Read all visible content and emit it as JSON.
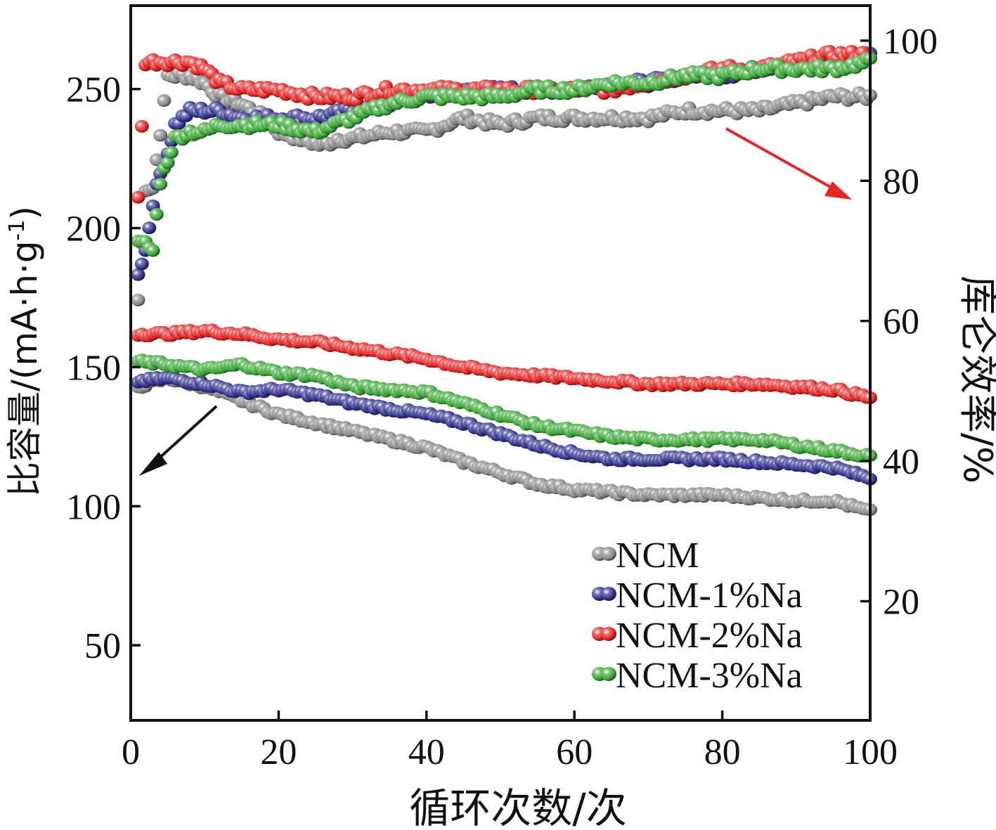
{
  "chart_data": {
    "type": "scatter",
    "xlabel": "循环次数/次",
    "ylabel_left": "比容量/(mA·h·g",
    "ylabel_left_sup": "-1",
    "ylabel_left_close": ")",
    "ylabel_right": "库仑效率/%",
    "xlim": [
      0,
      100
    ],
    "ylim_left": [
      23,
      280
    ],
    "ylim_right": [
      3,
      105
    ],
    "x_ticks": [
      0,
      20,
      40,
      60,
      80,
      100
    ],
    "y_left_ticks": [
      50,
      100,
      150,
      200,
      250
    ],
    "y_right_ticks": [
      20,
      40,
      60,
      80,
      100
    ],
    "legend_position": "bottom-right",
    "series_colors": {
      "NCM": "#8a8a8a",
      "NCM-1%Na": "#33338f",
      "NCM-2%Na": "#e32626",
      "NCM-3%Na": "#3ea83a"
    },
    "legend": [
      "NCM",
      "NCM-1%Na",
      "NCM-2%Na",
      "NCM-3%Na"
    ],
    "capacity_series": [
      {
        "name": "NCM",
        "axis": "left",
        "x": [
          1,
          5,
          10,
          15,
          20,
          25,
          30,
          35,
          40,
          45,
          50,
          55,
          60,
          65,
          70,
          75,
          80,
          85,
          90,
          95,
          100
        ],
        "y": [
          143,
          146,
          143,
          138,
          133,
          130,
          127,
          124,
          121,
          116,
          112,
          108,
          106,
          105,
          104,
          104,
          104,
          103,
          102,
          102,
          98
        ]
      },
      {
        "name": "NCM-1%Na",
        "axis": "left",
        "x": [
          1,
          5,
          10,
          15,
          20,
          25,
          30,
          35,
          40,
          45,
          50,
          55,
          60,
          65,
          70,
          75,
          80,
          85,
          90,
          95,
          100
        ],
        "y": [
          145,
          146,
          144,
          141,
          142,
          140,
          137,
          135,
          133,
          130,
          126,
          122,
          119,
          117,
          117,
          117,
          117,
          116,
          115,
          114,
          110
        ]
      },
      {
        "name": "NCM-2%Na",
        "axis": "left",
        "x": [
          1,
          5,
          10,
          15,
          20,
          25,
          30,
          35,
          40,
          45,
          50,
          55,
          60,
          65,
          70,
          75,
          80,
          85,
          90,
          95,
          100
        ],
        "y": [
          162,
          162,
          163,
          162,
          160,
          159,
          157,
          155,
          153,
          150,
          148,
          147,
          146,
          145,
          144,
          144,
          144,
          144,
          143,
          142,
          139
        ]
      },
      {
        "name": "NCM-3%Na",
        "axis": "left",
        "x": [
          1,
          5,
          10,
          15,
          20,
          25,
          30,
          35,
          40,
          45,
          50,
          55,
          60,
          65,
          70,
          75,
          80,
          85,
          90,
          95,
          100
        ],
        "y": [
          152,
          151,
          149,
          151,
          148,
          147,
          143,
          142,
          141,
          137,
          133,
          129,
          127,
          125,
          124,
          124,
          124,
          124,
          122,
          120,
          118
        ]
      }
    ],
    "efficiency_series": [
      {
        "name": "NCM",
        "axis": "right",
        "x": [
          1,
          2,
          3,
          5,
          8,
          10,
          12,
          15,
          18,
          20,
          23,
          26,
          28,
          30,
          35,
          40,
          45,
          50,
          55,
          60,
          65,
          70,
          75,
          80,
          85,
          90,
          95,
          100
        ],
        "y": [
          63,
          79,
          79,
          95,
          95,
          94,
          92,
          91,
          89,
          87,
          86,
          85,
          86,
          86,
          87,
          87,
          89,
          88,
          89,
          89,
          89,
          89,
          90,
          90,
          90,
          91,
          92,
          92
        ]
      },
      {
        "name": "NCM-1%Na",
        "axis": "right",
        "x": [
          1,
          2,
          3,
          4,
          5,
          6,
          8,
          10,
          12,
          15,
          20,
          25,
          30,
          35,
          40,
          45,
          50,
          55,
          60,
          65,
          70,
          75,
          80,
          85,
          90,
          95,
          100
        ],
        "y": [
          67,
          70,
          77,
          81,
          84,
          88,
          90,
          90,
          90,
          89,
          89,
          89,
          90,
          91,
          92,
          93,
          93,
          93,
          93,
          94,
          94,
          95,
          95,
          96,
          97,
          97,
          98
        ]
      },
      {
        "name": "NCM-2%Na",
        "axis": "right",
        "x": [
          1,
          2,
          5,
          8,
          10,
          12,
          15,
          20,
          25,
          30,
          35,
          40,
          45,
          50,
          55,
          60,
          65,
          70,
          75,
          80,
          85,
          90,
          95,
          100
        ],
        "y": [
          78,
          97,
          97,
          97,
          96,
          94,
          93,
          93,
          92,
          92,
          93,
          93,
          93,
          93,
          93,
          93,
          93,
          94,
          95,
          96,
          96,
          97,
          98,
          98
        ]
      },
      {
        "name": "NCM-3%Na",
        "axis": "right",
        "x": [
          1,
          2,
          3,
          4,
          5,
          6,
          8,
          10,
          12,
          15,
          20,
          25,
          30,
          35,
          40,
          45,
          50,
          55,
          60,
          65,
          70,
          75,
          80,
          85,
          90,
          95,
          100
        ],
        "y": [
          71,
          71,
          70,
          80,
          83,
          86,
          87,
          87,
          88,
          88,
          88,
          87,
          89,
          91,
          92,
          92,
          92,
          93,
          93,
          94,
          94,
          95,
          95,
          96,
          96,
          96,
          97
        ]
      }
    ]
  }
}
